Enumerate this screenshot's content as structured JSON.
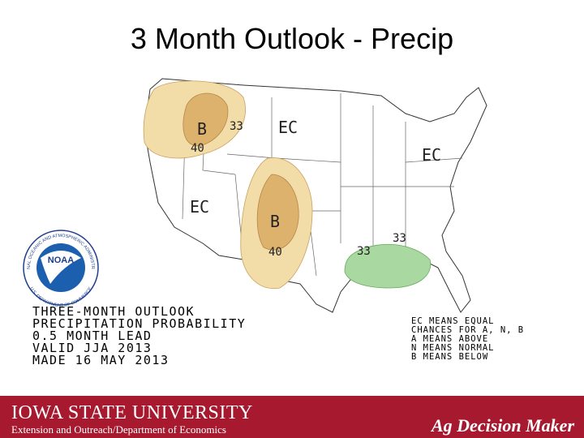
{
  "title": "3 Month Outlook - Precip",
  "map": {
    "labels": [
      "B",
      "33",
      "40",
      "EC",
      "EC",
      "EC",
      "B",
      "40",
      "33",
      "33"
    ]
  },
  "logo": {
    "name": "NOAA",
    "ring_top": "NATIONAL OCEANIC AND ATMOSPHERIC ADMINISTRATION",
    "ring_bottom": "U.S. DEPARTMENT OF COMMERCE"
  },
  "outlook_info": [
    "THREE-MONTH OUTLOOK",
    "PRECIPITATION PROBABILITY",
    "0.5 MONTH LEAD",
    "VALID JJA 2013",
    "MADE 16 MAY 2013"
  ],
  "legend": [
    "EC MEANS EQUAL",
    "CHANCES FOR A, N, B",
    "A MEANS ABOVE",
    "N MEANS NORMAL",
    "B MEANS BELOW"
  ],
  "footer": {
    "university": "IOWA STATE UNIVERSITY",
    "department": "Extension and Outreach/Department of Economics",
    "brand": "Ag Decision Maker"
  }
}
